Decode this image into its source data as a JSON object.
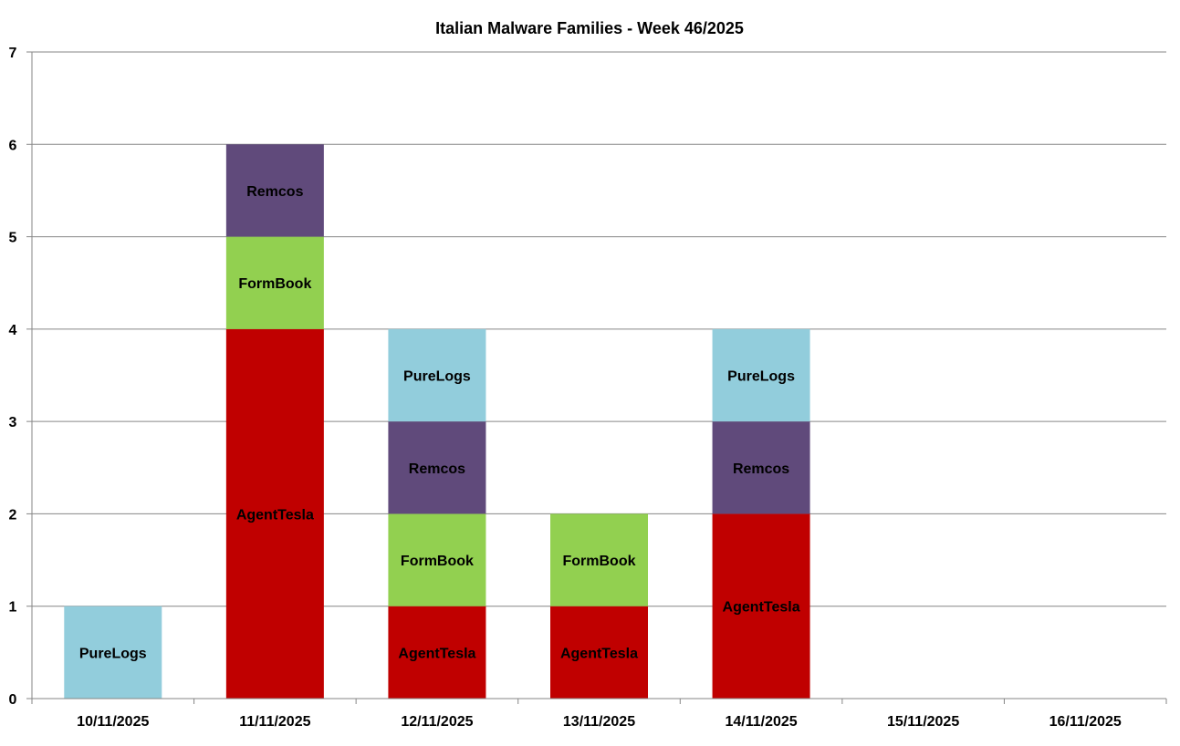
{
  "chart_data": {
    "type": "bar",
    "stacked": true,
    "title": "Italian Malware Families - Week 46/2025",
    "xlabel": "",
    "ylabel": "",
    "ylim": [
      0,
      7
    ],
    "yticks": [
      "0",
      "1",
      "2",
      "3",
      "4",
      "5",
      "6",
      "7"
    ],
    "grid": true,
    "legend": "none",
    "categories": [
      "10/11/2025",
      "11/11/2025",
      "12/11/2025",
      "13/11/2025",
      "14/11/2025",
      "15/11/2025",
      "16/11/2025"
    ],
    "series": [
      {
        "name": "AgentTesla",
        "color": "#c00000",
        "values": [
          0,
          4,
          1,
          1,
          2,
          0,
          0
        ]
      },
      {
        "name": "FormBook",
        "color": "#92d050",
        "values": [
          0,
          1,
          1,
          1,
          0,
          0,
          0
        ]
      },
      {
        "name": "Remcos",
        "color": "#604a7b",
        "values": [
          0,
          1,
          1,
          0,
          1,
          0,
          0
        ]
      },
      {
        "name": "PureLogs",
        "color": "#92cddc",
        "values": [
          1,
          0,
          1,
          0,
          1,
          0,
          0
        ]
      }
    ]
  }
}
